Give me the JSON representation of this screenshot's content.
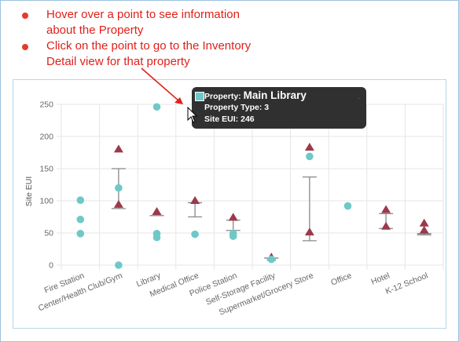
{
  "instructions": [
    {
      "text": "Hover over a point to see information\nabout the Property"
    },
    {
      "text": "Click on the point to go to the Inventory\nDetail view for that property"
    }
  ],
  "tooltip": {
    "property_label": "Property:",
    "property_name": "Main Library",
    "type_label": "Property Type:",
    "type_value": "3",
    "eui_label": "Site EUI:",
    "eui_value": "246",
    "swatch_color": "#6fc8c8"
  },
  "chart_data": {
    "type": "scatter",
    "title": "",
    "xlabel": "",
    "ylabel": "Site EUI",
    "ylim": [
      0,
      250
    ],
    "yticks": [
      0,
      50,
      100,
      150,
      200,
      250
    ],
    "grid": true,
    "categories": [
      "Fire Station",
      "Center/Health Club/Gym",
      "Library",
      "Medical Office",
      "Police Station",
      "Self-Storage Facility",
      "Supermarket/Grocery Store",
      "Office",
      "Hotel",
      "K-12 School"
    ],
    "colors": {
      "points": "#6fc8c8",
      "targets": "#9b3a4a",
      "whisker": "#888888",
      "grid": "#e6e6e6"
    },
    "points": [
      {
        "category": "Fire Station",
        "y": 101
      },
      {
        "category": "Fire Station",
        "y": 71
      },
      {
        "category": "Fire Station",
        "y": 49
      },
      {
        "category": "Center/Health Club/Gym",
        "y": 120
      },
      {
        "category": "Center/Health Club/Gym",
        "y": 0
      },
      {
        "category": "Library",
        "y": 49
      },
      {
        "category": "Library",
        "y": 43
      },
      {
        "category": "Library",
        "y": 246
      },
      {
        "category": "Medical Office",
        "y": 48
      },
      {
        "category": "Police Station",
        "y": 49
      },
      {
        "category": "Police Station",
        "y": 45
      },
      {
        "category": "Self-Storage Facility",
        "y": 9
      },
      {
        "category": "Supermarket/Grocery Store",
        "y": 169
      },
      {
        "category": "Office",
        "y": 92
      }
    ],
    "targets": [
      {
        "category": "Center/Health Club/Gym",
        "y": 180
      },
      {
        "category": "Center/Health Club/Gym",
        "y": 94
      },
      {
        "category": "Library",
        "y": 83
      },
      {
        "category": "Medical Office",
        "y": 100
      },
      {
        "category": "Police Station",
        "y": 74
      },
      {
        "category": "Self-Storage Facility",
        "y": 12
      },
      {
        "category": "Supermarket/Grocery Store",
        "y": 183
      },
      {
        "category": "Supermarket/Grocery Store",
        "y": 51
      },
      {
        "category": "Hotel",
        "y": 86
      },
      {
        "category": "Hotel",
        "y": 60
      },
      {
        "category": "K-12 School",
        "y": 65
      },
      {
        "category": "K-12 School",
        "y": 54
      }
    ],
    "whiskers": [
      {
        "category": "Center/Health Club/Gym",
        "low": 88,
        "high": 150
      },
      {
        "category": "Library",
        "low": 77,
        "high": 77
      },
      {
        "category": "Medical Office",
        "low": 75,
        "high": 97
      },
      {
        "category": "Police Station",
        "low": 54,
        "high": 70
      },
      {
        "category": "Self-Storage Facility",
        "low": 11,
        "high": 11
      },
      {
        "category": "Supermarket/Grocery Store",
        "low": 38,
        "high": 137
      },
      {
        "category": "Hotel",
        "low": 57,
        "high": 80
      },
      {
        "category": "K-12 School",
        "low": 47,
        "high": 49
      }
    ]
  }
}
